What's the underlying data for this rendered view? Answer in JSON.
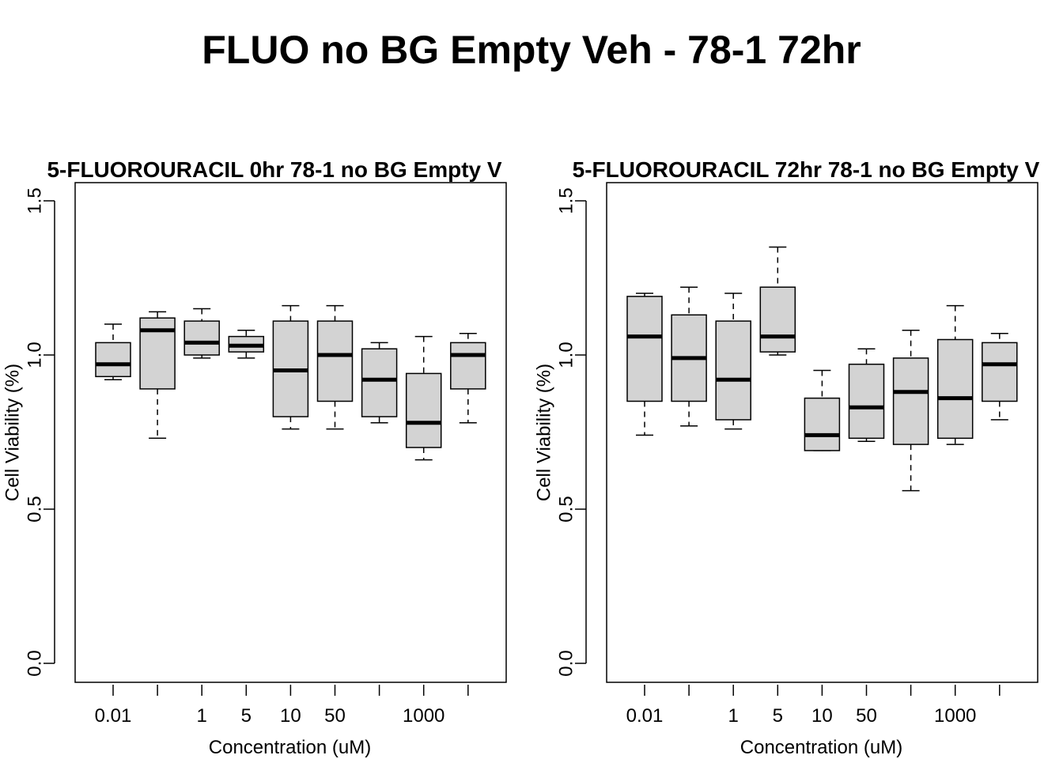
{
  "page_title": "FLUO no BG Empty Veh - 78-1 72hr",
  "chart_data": [
    {
      "type": "boxplot",
      "title": "5-FLUOROURACIL 0hr 78-1 no BG Empty V",
      "xlabel": "Concentration (uM)",
      "ylabel": "Cell Viability (%)",
      "ylim": [
        0,
        1.5
      ],
      "y_ticks": [
        "0.0",
        "0.5",
        "1.0",
        "1.5"
      ],
      "x_tick_labels": [
        "0.01",
        "",
        "1",
        "5",
        "10",
        "50",
        "",
        "1000",
        ""
      ],
      "box_fill": "#d3d3d3",
      "grid": false,
      "boxes": [
        {
          "whisker_low": 0.92,
          "q1": 0.93,
          "median": 0.97,
          "q3": 1.04,
          "whisker_high": 1.1
        },
        {
          "whisker_low": 0.73,
          "q1": 0.89,
          "median": 1.08,
          "q3": 1.12,
          "whisker_high": 1.14
        },
        {
          "whisker_low": 0.99,
          "q1": 1.0,
          "median": 1.04,
          "q3": 1.11,
          "whisker_high": 1.15
        },
        {
          "whisker_low": 0.99,
          "q1": 1.01,
          "median": 1.03,
          "q3": 1.06,
          "whisker_high": 1.08
        },
        {
          "whisker_low": 0.76,
          "q1": 0.8,
          "median": 0.95,
          "q3": 1.11,
          "whisker_high": 1.16
        },
        {
          "whisker_low": 0.76,
          "q1": 0.85,
          "median": 1.0,
          "q3": 1.11,
          "whisker_high": 1.16
        },
        {
          "whisker_low": 0.78,
          "q1": 0.8,
          "median": 0.92,
          "q3": 1.02,
          "whisker_high": 1.04
        },
        {
          "whisker_low": 0.66,
          "q1": 0.7,
          "median": 0.78,
          "q3": 0.94,
          "whisker_high": 1.06
        },
        {
          "whisker_low": 0.78,
          "q1": 0.89,
          "median": 1.0,
          "q3": 1.04,
          "whisker_high": 1.07
        }
      ]
    },
    {
      "type": "boxplot",
      "title": "5-FLUOROURACIL 72hr 78-1 no BG Empty V",
      "xlabel": "Concentration (uM)",
      "ylabel": "Cell Viability (%)",
      "ylim": [
        0,
        1.5
      ],
      "y_ticks": [
        "0.0",
        "0.5",
        "1.0",
        "1.5"
      ],
      "x_tick_labels": [
        "0.01",
        "",
        "1",
        "5",
        "10",
        "50",
        "",
        "1000",
        ""
      ],
      "box_fill": "#d3d3d3",
      "grid": false,
      "boxes": [
        {
          "whisker_low": 0.74,
          "q1": 0.85,
          "median": 1.06,
          "q3": 1.19,
          "whisker_high": 1.2
        },
        {
          "whisker_low": 0.77,
          "q1": 0.85,
          "median": 0.99,
          "q3": 1.13,
          "whisker_high": 1.22
        },
        {
          "whisker_low": 0.76,
          "q1": 0.79,
          "median": 0.92,
          "q3": 1.11,
          "whisker_high": 1.2
        },
        {
          "whisker_low": 1.0,
          "q1": 1.01,
          "median": 1.06,
          "q3": 1.22,
          "whisker_high": 1.35
        },
        {
          "whisker_low": 0.69,
          "q1": 0.69,
          "median": 0.74,
          "q3": 0.86,
          "whisker_high": 0.95
        },
        {
          "whisker_low": 0.72,
          "q1": 0.73,
          "median": 0.83,
          "q3": 0.97,
          "whisker_high": 1.02
        },
        {
          "whisker_low": 0.56,
          "q1": 0.71,
          "median": 0.88,
          "q3": 0.99,
          "whisker_high": 1.08
        },
        {
          "whisker_low": 0.71,
          "q1": 0.73,
          "median": 0.86,
          "q3": 1.05,
          "whisker_high": 1.16
        },
        {
          "whisker_low": 0.79,
          "q1": 0.85,
          "median": 0.97,
          "q3": 1.04,
          "whisker_high": 1.07
        }
      ]
    }
  ]
}
